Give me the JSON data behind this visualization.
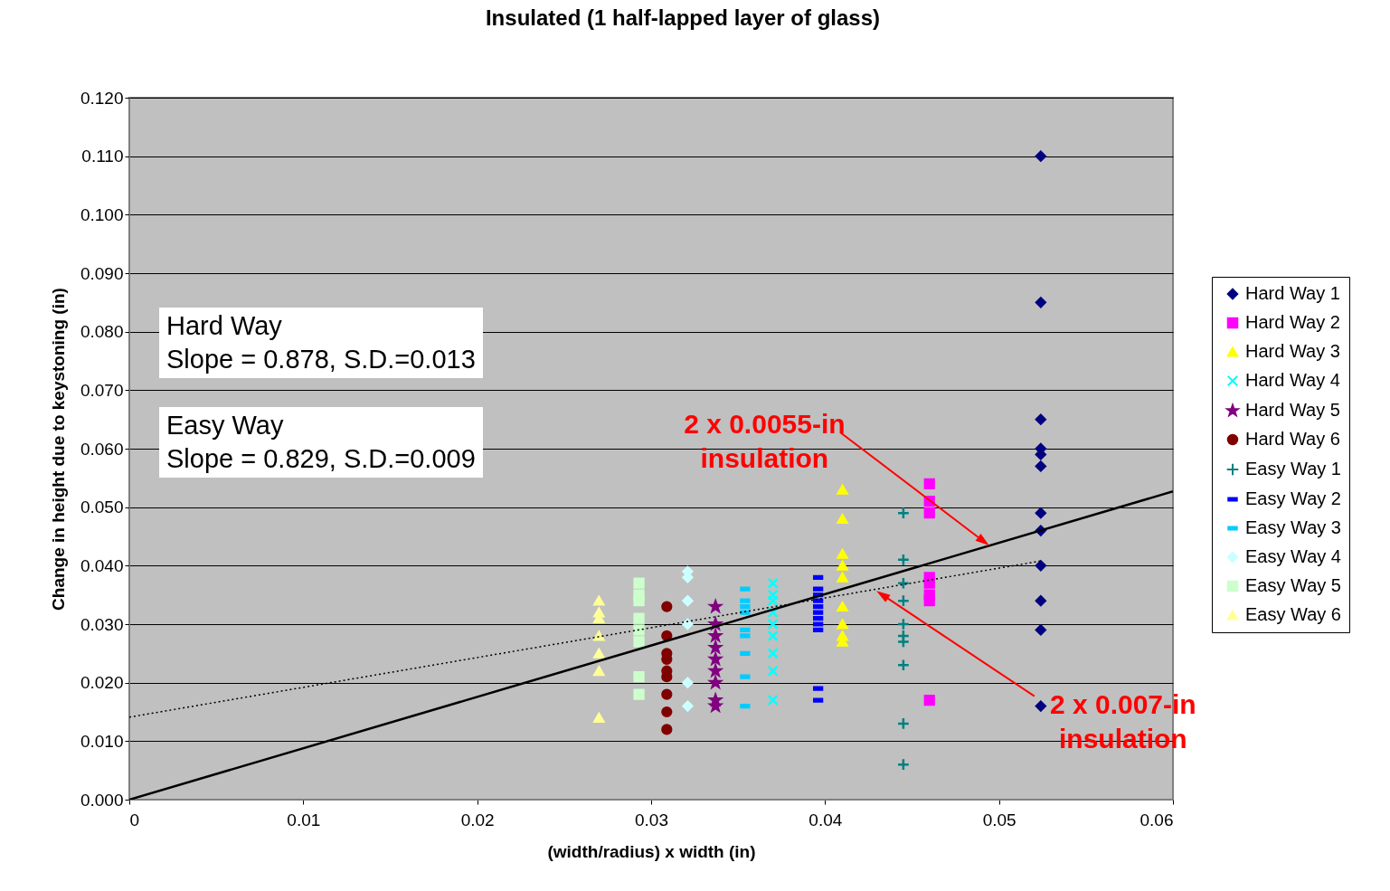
{
  "chart_data": {
    "type": "scatter",
    "title": "Insulated (1 half-lapped layer of glass)",
    "xlabel": "(width/radius) x width (in)",
    "ylabel": "Change in height due to keystoning (in)",
    "xlim": [
      0,
      0.06
    ],
    "xticks": [
      0,
      0.01,
      0.02,
      0.03,
      0.04,
      0.05,
      0.06
    ],
    "ylim": [
      0,
      0.12
    ],
    "yticks": [
      {
        "value": 0,
        "label": "0.000"
      },
      {
        "value": 0.01,
        "label": "0.010"
      },
      {
        "value": 0.02,
        "label": "0.020"
      },
      {
        "value": 0.03,
        "label": "0.030"
      },
      {
        "value": 0.04,
        "label": "0.040"
      },
      {
        "value": 0.05,
        "label": "0.050"
      },
      {
        "value": 0.06,
        "label": "0.060"
      },
      {
        "value": 0.07,
        "label": "0.070"
      },
      {
        "value": 0.08,
        "label": "0.080"
      },
      {
        "value": 0.09,
        "label": "0.090"
      },
      {
        "value": 0.1,
        "label": "0.100"
      },
      {
        "value": 0.11,
        "label": "0.110"
      },
      {
        "value": 0.12,
        "label": "0.120"
      }
    ],
    "grid": "y",
    "legend": "right",
    "series": [
      {
        "name": "Hard Way 1",
        "color": "#000080",
        "marker": "diamond",
        "x": [
          0.0524,
          0.0524,
          0.0524,
          0.0524,
          0.0524,
          0.0524,
          0.0524,
          0.0524,
          0.0524,
          0.0524,
          0.0524,
          0.0524
        ],
        "values": [
          0.11,
          0.085,
          0.065,
          0.06,
          0.059,
          0.057,
          0.049,
          0.046,
          0.04,
          0.034,
          0.029,
          0.016
        ]
      },
      {
        "name": "Hard Way 2",
        "color": "#ff00ff",
        "marker": "square",
        "x": [
          0.046,
          0.046,
          0.046,
          0.046,
          0.046,
          0.046,
          0.046,
          0.046
        ],
        "values": [
          0.054,
          0.051,
          0.049,
          0.038,
          0.037,
          0.035,
          0.034,
          0.017
        ]
      },
      {
        "name": "Hard Way 3",
        "color": "#ffff00",
        "marker": "triangle",
        "x": [
          0.041,
          0.041,
          0.041,
          0.041,
          0.041,
          0.041,
          0.041,
          0.041,
          0.041
        ],
        "values": [
          0.053,
          0.048,
          0.042,
          0.04,
          0.038,
          0.033,
          0.03,
          0.028,
          0.027
        ]
      },
      {
        "name": "Hard Way 4",
        "color": "#00ffff",
        "marker": "cross",
        "x": [
          0.037,
          0.037,
          0.037,
          0.037,
          0.037,
          0.037,
          0.037,
          0.037,
          0.037
        ],
        "values": [
          0.037,
          0.035,
          0.034,
          0.032,
          0.03,
          0.028,
          0.025,
          0.022,
          0.017
        ]
      },
      {
        "name": "Hard Way 5",
        "color": "#800080",
        "marker": "star",
        "x": [
          0.0337,
          0.0337,
          0.0337,
          0.0337,
          0.0337,
          0.0337,
          0.0337,
          0.0337,
          0.0337
        ],
        "values": [
          0.033,
          0.03,
          0.028,
          0.026,
          0.024,
          0.022,
          0.02,
          0.017,
          0.016
        ]
      },
      {
        "name": "Hard Way 6",
        "color": "#800000",
        "marker": "circle",
        "x": [
          0.0309,
          0.0309,
          0.0309,
          0.0309,
          0.0309,
          0.0309,
          0.0309,
          0.0309,
          0.0309
        ],
        "values": [
          0.033,
          0.028,
          0.025,
          0.024,
          0.022,
          0.021,
          0.018,
          0.015,
          0.012
        ]
      },
      {
        "name": "Easy Way 1",
        "color": "#008080",
        "marker": "plus",
        "x": [
          0.0445,
          0.0445,
          0.0445,
          0.0445,
          0.0445,
          0.0445,
          0.0445,
          0.0445,
          0.0445,
          0.0445
        ],
        "values": [
          0.049,
          0.041,
          0.037,
          0.034,
          0.03,
          0.028,
          0.027,
          0.023,
          0.013,
          0.006
        ]
      },
      {
        "name": "Easy Way 2",
        "color": "#0000ff",
        "x": [
          0.0396,
          0.0396,
          0.0396,
          0.0396,
          0.0396,
          0.0396,
          0.0396,
          0.0396,
          0.0396,
          0.0396,
          0.0396
        ],
        "values": [
          0.038,
          0.036,
          0.035,
          0.034,
          0.033,
          0.032,
          0.031,
          0.03,
          0.029,
          0.019,
          0.017
        ]
      },
      {
        "name": "Easy Way 3",
        "color": "#00ccff",
        "x": [
          0.0354,
          0.0354,
          0.0354,
          0.0354,
          0.0354,
          0.0354,
          0.0354,
          0.0354,
          0.0354
        ],
        "values": [
          0.036,
          0.034,
          0.033,
          0.032,
          0.029,
          0.028,
          0.025,
          0.021,
          0.016
        ]
      },
      {
        "name": "Easy Way 4",
        "color": "#ccffff",
        "marker": "diamond",
        "x": [
          0.0321,
          0.0321,
          0.0321,
          0.0321,
          0.0321,
          0.0321
        ],
        "values": [
          0.039,
          0.038,
          0.034,
          0.03,
          0.02,
          0.016
        ]
      },
      {
        "name": "Easy Way 5",
        "color": "#ccffcc",
        "marker": "square",
        "x": [
          0.0293,
          0.0293,
          0.0293,
          0.0293,
          0.0293,
          0.0293,
          0.0293,
          0.0293
        ],
        "values": [
          0.037,
          0.035,
          0.034,
          0.031,
          0.029,
          0.027,
          0.021,
          0.018
        ]
      },
      {
        "name": "Easy Way 6",
        "color": "#ffff99",
        "marker": "triangle",
        "x": [
          0.027,
          0.027,
          0.027,
          0.027,
          0.027,
          0.027,
          0.027
        ],
        "values": [
          0.034,
          0.032,
          0.031,
          0.028,
          0.025,
          0.022,
          0.014
        ]
      },
      {
        "type": "line",
        "color": "#000000",
        "line_style": "solid",
        "marker": "none",
        "x": [
          0,
          0.06
        ],
        "values": [
          0,
          0.0527
        ]
      },
      {
        "type": "line",
        "color": "#000000",
        "line_style": "dotted",
        "marker": "none",
        "x": [
          0,
          0.0524
        ],
        "values": [
          0.0141,
          0.0408
        ]
      }
    ],
    "annotations": [
      "Hard Way\nSlope = 0.878, S.D.=0.013",
      "Easy Way\nSlope = 0.829, S.D.=0.009",
      {
        "text": "2 x 0.0055-in\ninsulation",
        "x": 0.0491,
        "y": 0.0442
      },
      {
        "text": "2 x 0.007-in\ninsulation",
        "x": 0.0433,
        "y": 0.035
      }
    ]
  }
}
